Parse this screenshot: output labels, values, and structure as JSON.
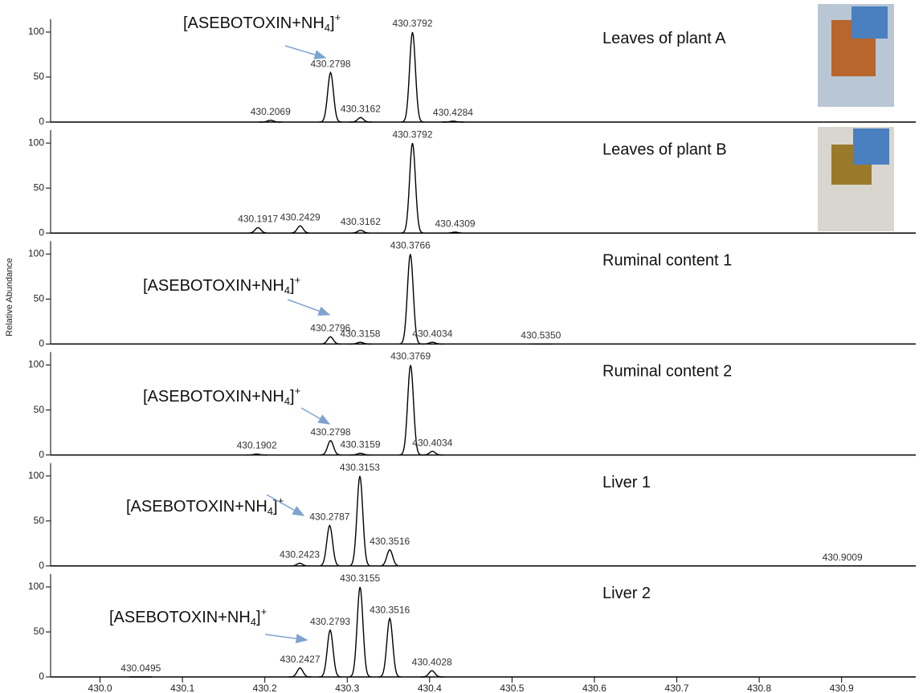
{
  "ylabel": "Relative Abundance",
  "chart_data": [
    {
      "type": "line",
      "title": "Leaves of plant A",
      "annotation": [
        "[ASEBOTOXIN+NH",
        "4",
        "]",
        "+"
      ],
      "x": [
        430.2069,
        430.2798,
        430.3162,
        430.3792,
        430.4284
      ],
      "values": [
        2,
        55,
        5,
        100,
        1
      ],
      "xlim": [
        429.94,
        430.99
      ],
      "ylim": [
        0,
        118
      ],
      "yticks": [
        0,
        50,
        100
      ],
      "color": "#000000"
    },
    {
      "type": "line",
      "title": "Leaves of plant B",
      "x": [
        430.1917,
        430.2429,
        430.3162,
        430.3792,
        430.4309
      ],
      "values": [
        6,
        8,
        3,
        100,
        1
      ],
      "xlim": [
        429.94,
        430.99
      ],
      "ylim": [
        0,
        118
      ],
      "yticks": [
        0,
        50,
        100
      ],
      "color": "#000000"
    },
    {
      "type": "line",
      "title": "Ruminal content 1",
      "annotation": [
        "[ASEBOTOXIN+NH",
        "4",
        "]",
        "+"
      ],
      "x": [
        430.2796,
        430.3158,
        430.3766,
        430.4034,
        {
          "value": 430.535,
          "label": "430.5350"
        }
      ],
      "values": [
        8,
        2,
        100,
        2,
        0
      ],
      "xlim": [
        429.94,
        430.99
      ],
      "ylim": [
        0,
        118
      ],
      "yticks": [
        0,
        50,
        100
      ],
      "color": "#000000"
    },
    {
      "type": "line",
      "title": "Ruminal content 2",
      "annotation": [
        "[ASEBOTOXIN+NH",
        "4",
        "]",
        "+"
      ],
      "x": [
        430.1902,
        430.2798,
        430.3159,
        430.3769,
        430.4034
      ],
      "values": [
        1,
        16,
        2,
        100,
        4
      ],
      "xlim": [
        429.94,
        430.99
      ],
      "ylim": [
        0,
        118
      ],
      "yticks": [
        0,
        50,
        100
      ],
      "color": "#000000"
    },
    {
      "type": "line",
      "title": "Liver 1",
      "annotation": [
        "[ASEBOTOXIN+NH",
        "4",
        "]",
        "+"
      ],
      "x": [
        430.2423,
        430.2787,
        430.3153,
        430.3516,
        430.9009
      ],
      "values": [
        3,
        45,
        100,
        18,
        0
      ],
      "xlim": [
        429.94,
        430.99
      ],
      "ylim": [
        0,
        118
      ],
      "yticks": [
        0,
        50,
        100
      ],
      "color": "#000000"
    },
    {
      "type": "line",
      "title": "Liver 2",
      "annotation": [
        "[ASEBOTOXIN+NH",
        "4",
        "]",
        "+"
      ],
      "x": [
        430.0495,
        430.2427,
        430.2793,
        430.3155,
        430.3516,
        430.4028
      ],
      "values": [
        0,
        10,
        52,
        100,
        65,
        7
      ],
      "xlim": [
        429.94,
        430.99
      ],
      "ylim": [
        0,
        118
      ],
      "yticks": [
        0,
        50,
        100
      ],
      "color": "#000000",
      "xticks": [
        {
          "value": 430.0,
          "label": "430.0"
        },
        430.1,
        430.2,
        430.3,
        430.4,
        430.5,
        430.6,
        430.7,
        430.8,
        430.9
      ]
    }
  ]
}
